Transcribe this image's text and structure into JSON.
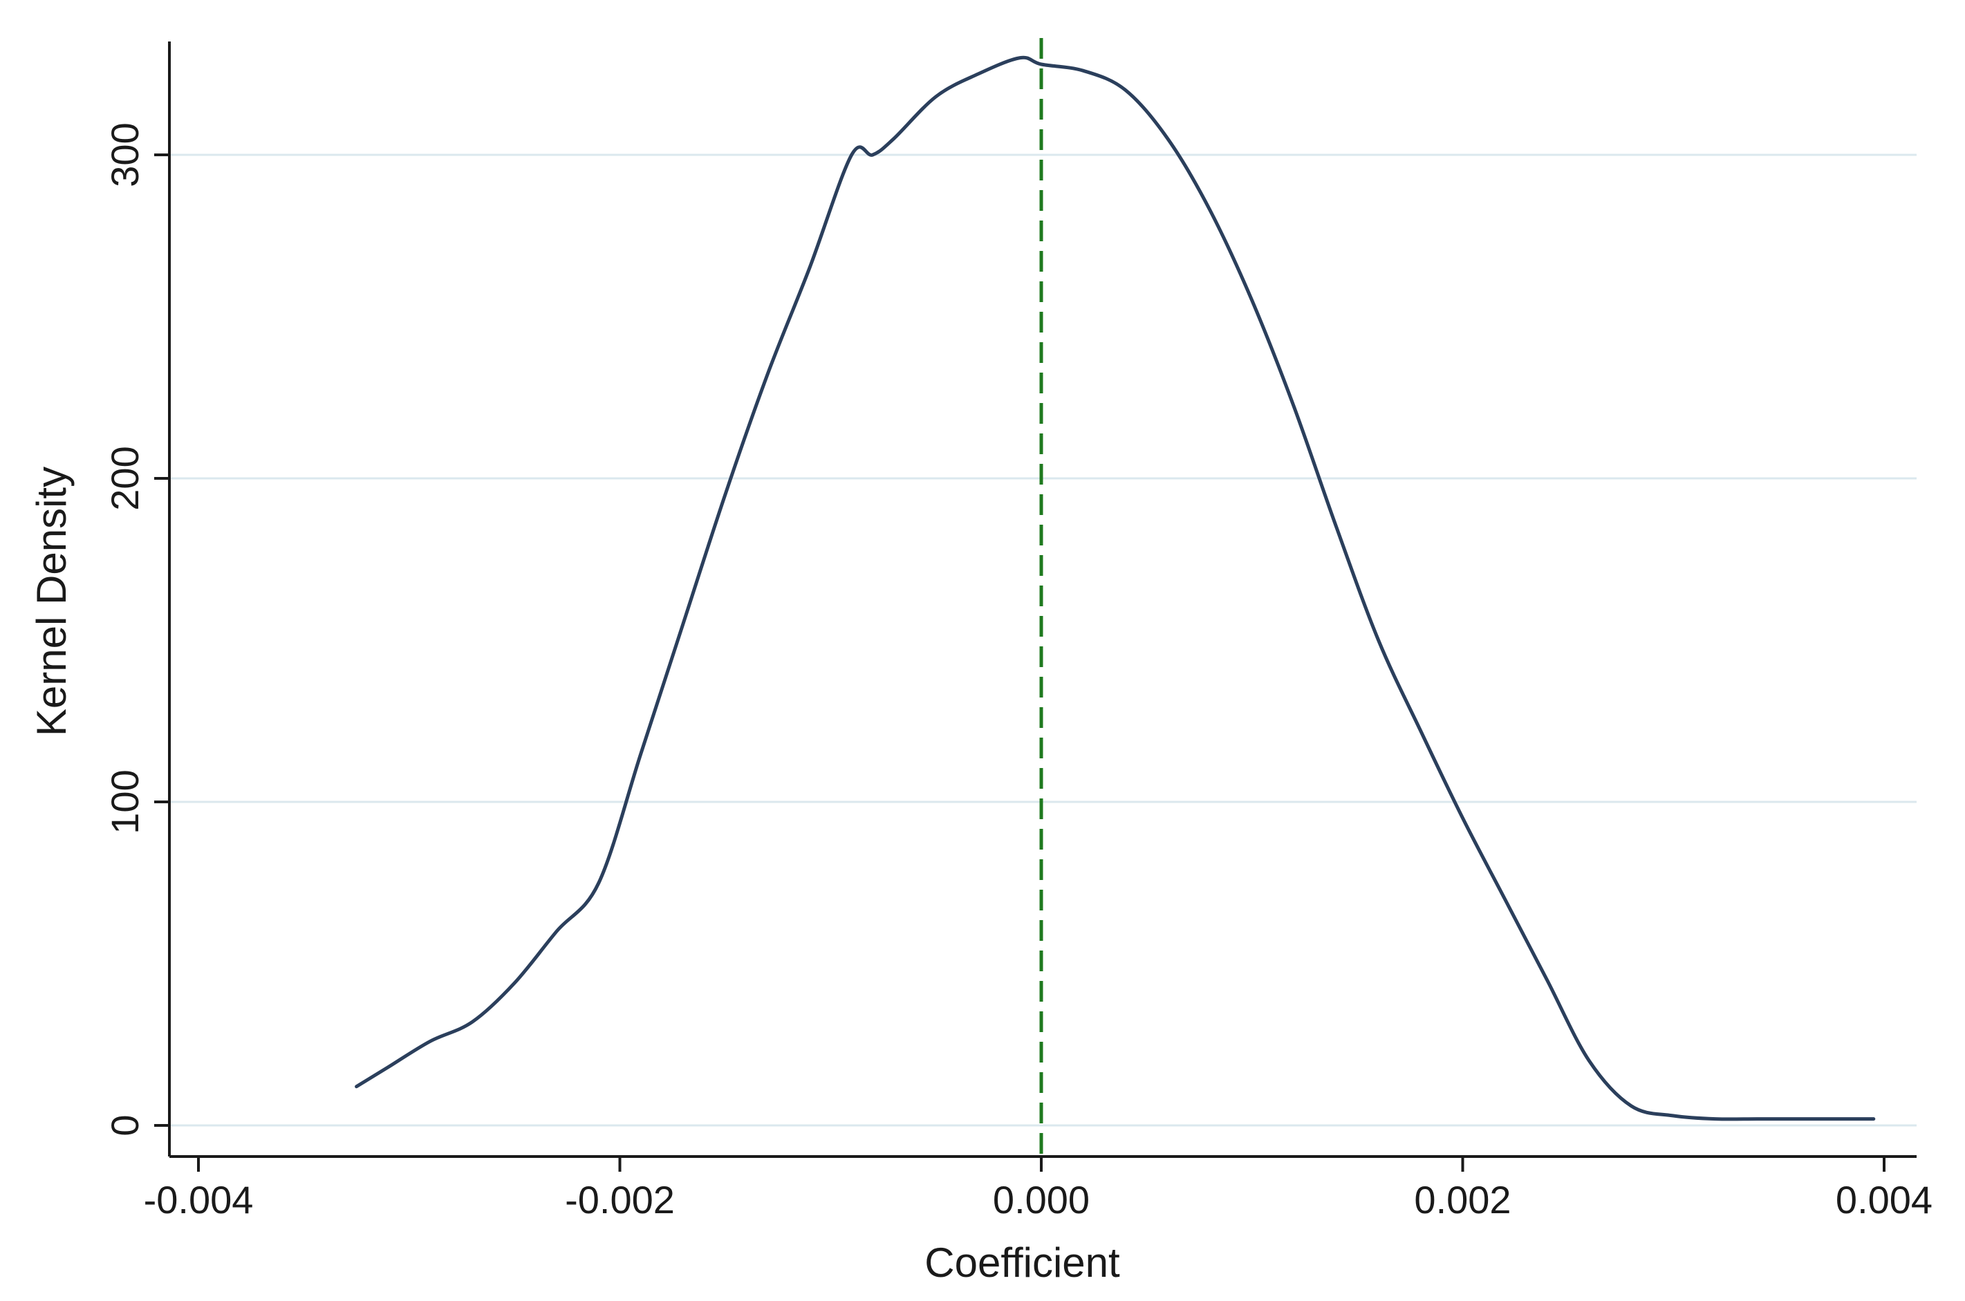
{
  "chart_data": {
    "type": "line",
    "xlabel": "Coefficient",
    "ylabel": "Kernel Density",
    "xlim": [
      -0.004,
      0.004
    ],
    "ylim": [
      0,
      320
    ],
    "x_ticks": [
      {
        "value": -0.004,
        "label": "-0.004"
      },
      {
        "value": -0.002,
        "label": "-0.002"
      },
      {
        "value": 0.0,
        "label": "0.000"
      },
      {
        "value": 0.002,
        "label": "0.002"
      },
      {
        "value": 0.004,
        "label": "0.004"
      }
    ],
    "y_ticks": [
      {
        "value": 0,
        "label": "0"
      },
      {
        "value": 100,
        "label": "100"
      },
      {
        "value": 200,
        "label": "200"
      },
      {
        "value": 300,
        "label": "300"
      }
    ],
    "horizontal_grid": true,
    "reference_line": {
      "x": 0.0,
      "style": "dashed",
      "color": "#1f7a1f"
    },
    "series": [
      {
        "color": "#2b3f5c",
        "points": [
          [
            -0.00325,
            12
          ],
          [
            -0.0031,
            18
          ],
          [
            -0.0029,
            26
          ],
          [
            -0.0027,
            32
          ],
          [
            -0.0025,
            44
          ],
          [
            -0.0023,
            60
          ],
          [
            -0.0021,
            75
          ],
          [
            -0.0019,
            115
          ],
          [
            -0.0017,
            155
          ],
          [
            -0.0015,
            195
          ],
          [
            -0.0013,
            232
          ],
          [
            -0.0011,
            265
          ],
          [
            -0.0009,
            300
          ],
          [
            -0.0008,
            300
          ],
          [
            -0.0007,
            305
          ],
          [
            -0.0005,
            318
          ],
          [
            -0.0003,
            325
          ],
          [
            -0.0001,
            330
          ],
          [
            0.0,
            328
          ],
          [
            0.0002,
            326
          ],
          [
            0.0004,
            320
          ],
          [
            0.0006,
            305
          ],
          [
            0.0008,
            283
          ],
          [
            0.001,
            255
          ],
          [
            0.0012,
            222
          ],
          [
            0.0014,
            185
          ],
          [
            0.0016,
            150
          ],
          [
            0.0018,
            122
          ],
          [
            0.002,
            95
          ],
          [
            0.0022,
            70
          ],
          [
            0.0024,
            45
          ],
          [
            0.0026,
            20
          ],
          [
            0.0028,
            6
          ],
          [
            0.003,
            3
          ],
          [
            0.0032,
            2
          ],
          [
            0.0034,
            2
          ],
          [
            0.0036,
            2
          ],
          [
            0.0038,
            2
          ],
          [
            0.00395,
            2
          ]
        ]
      }
    ]
  },
  "colors": {
    "curve": "#2b3f5c",
    "reference": "#1f7a1f",
    "grid": "#dbe8ee",
    "axis": "#1a1a1a"
  }
}
